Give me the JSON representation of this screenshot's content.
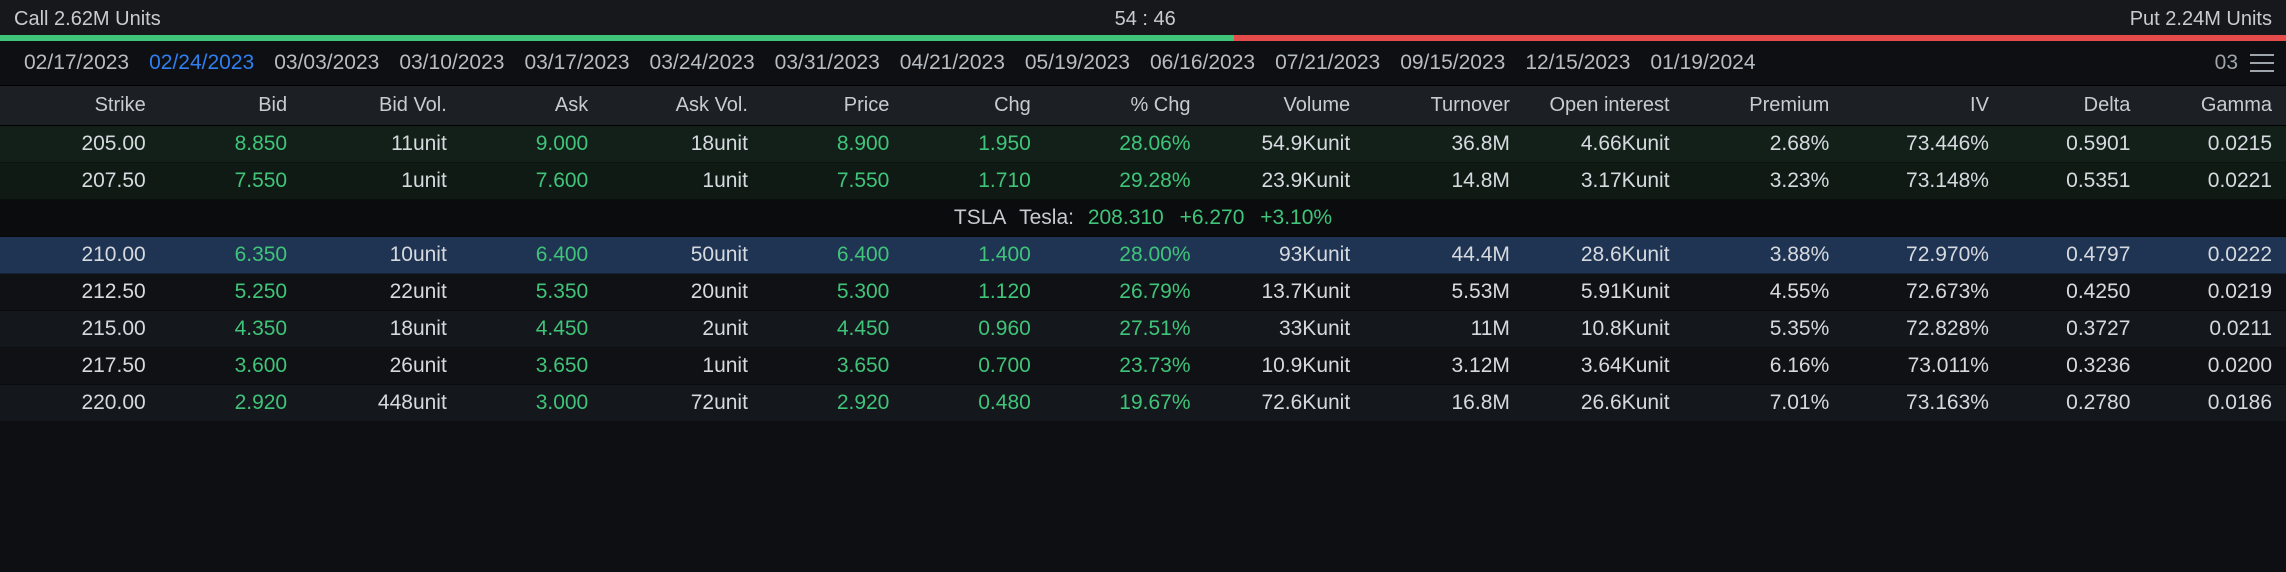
{
  "header": {
    "call_label": "Call 2.62M Units",
    "put_label": "Put 2.24M Units",
    "ratio_text": "54 : 46",
    "ratio_call_pct": 54,
    "ratio_put_pct": 46,
    "colors": {
      "call": "#3fc47a",
      "put": "#e54b4b",
      "bg": "#16181c"
    }
  },
  "dates": {
    "items": [
      "02/17/2023",
      "02/24/2023",
      "03/03/2023",
      "03/10/2023",
      "03/17/2023",
      "03/24/2023",
      "03/31/2023",
      "04/21/2023",
      "05/19/2023",
      "06/16/2023",
      "07/21/2023",
      "09/15/2023",
      "12/15/2023",
      "01/19/2024"
    ],
    "active_index": 1,
    "overflow_label": "03"
  },
  "columns": [
    "Strike",
    "Bid",
    "Bid Vol.",
    "Ask",
    "Ask Vol.",
    "Price",
    "Chg",
    "% Chg",
    "Volume",
    "Turnover",
    "Open interest",
    "Premium",
    "IV",
    "Delta",
    "Gamma"
  ],
  "ticker": {
    "symbol": "TSLA",
    "name": "Tesla:",
    "price": "208.310",
    "chg": "+6.270",
    "pct": "+3.10%"
  },
  "rows_before": [
    {
      "style": "greenish",
      "strike": "205.00",
      "bid": "8.850",
      "bidvol": "11unit",
      "ask": "9.000",
      "askvol": "18unit",
      "price": "8.900",
      "chg": "1.950",
      "pctchg": "28.06%",
      "volume": "54.9Kunit",
      "turnover": "36.8M",
      "oi": "4.66Kunit",
      "premium": "2.68%",
      "iv": "73.446%",
      "delta": "0.5901",
      "gamma": "0.0215"
    },
    {
      "style": "greenish2",
      "strike": "207.50",
      "bid": "7.550",
      "bidvol": "1unit",
      "ask": "7.600",
      "askvol": "1unit",
      "price": "7.550",
      "chg": "1.710",
      "pctchg": "29.28%",
      "volume": "23.9Kunit",
      "turnover": "14.8M",
      "oi": "3.17Kunit",
      "premium": "3.23%",
      "iv": "73.148%",
      "delta": "0.5351",
      "gamma": "0.0221"
    }
  ],
  "rows_after": [
    {
      "style": "highlight",
      "strike": "210.00",
      "bid": "6.350",
      "bidvol": "10unit",
      "ask": "6.400",
      "askvol": "50unit",
      "price": "6.400",
      "chg": "1.400",
      "pctchg": "28.00%",
      "volume": "93Kunit",
      "turnover": "44.4M",
      "oi": "28.6Kunit",
      "premium": "3.88%",
      "iv": "72.970%",
      "delta": "0.4797",
      "gamma": "0.0222"
    },
    {
      "style": "dark",
      "strike": "212.50",
      "bid": "5.250",
      "bidvol": "22unit",
      "ask": "5.350",
      "askvol": "20unit",
      "price": "5.300",
      "chg": "1.120",
      "pctchg": "26.79%",
      "volume": "13.7Kunit",
      "turnover": "5.53M",
      "oi": "5.91Kunit",
      "premium": "4.55%",
      "iv": "72.673%",
      "delta": "0.4250",
      "gamma": "0.0219"
    },
    {
      "style": "dark2",
      "strike": "215.00",
      "bid": "4.350",
      "bidvol": "18unit",
      "ask": "4.450",
      "askvol": "2unit",
      "price": "4.450",
      "chg": "0.960",
      "pctchg": "27.51%",
      "volume": "33Kunit",
      "turnover": "11M",
      "oi": "10.8Kunit",
      "premium": "5.35%",
      "iv": "72.828%",
      "delta": "0.3727",
      "gamma": "0.0211"
    },
    {
      "style": "dark",
      "strike": "217.50",
      "bid": "3.600",
      "bidvol": "26unit",
      "ask": "3.650",
      "askvol": "1unit",
      "price": "3.650",
      "chg": "0.700",
      "pctchg": "23.73%",
      "volume": "10.9Kunit",
      "turnover": "3.12M",
      "oi": "3.64Kunit",
      "premium": "6.16%",
      "iv": "73.011%",
      "delta": "0.3236",
      "gamma": "0.0200"
    },
    {
      "style": "dark2",
      "strike": "220.00",
      "bid": "2.920",
      "bidvol": "448unit",
      "ask": "3.000",
      "askvol": "72unit",
      "price": "2.920",
      "chg": "0.480",
      "pctchg": "19.67%",
      "volume": "72.6Kunit",
      "turnover": "16.8M",
      "oi": "26.6Kunit",
      "premium": "7.01%",
      "iv": "73.163%",
      "delta": "0.2780",
      "gamma": "0.0186"
    }
  ],
  "style": {
    "pos_color": "#3fc47a",
    "text_color": "#d6dadf",
    "bg": "#0d0f12",
    "header_bg": "#1c1f24",
    "highlight_bg": "#1f3353"
  }
}
